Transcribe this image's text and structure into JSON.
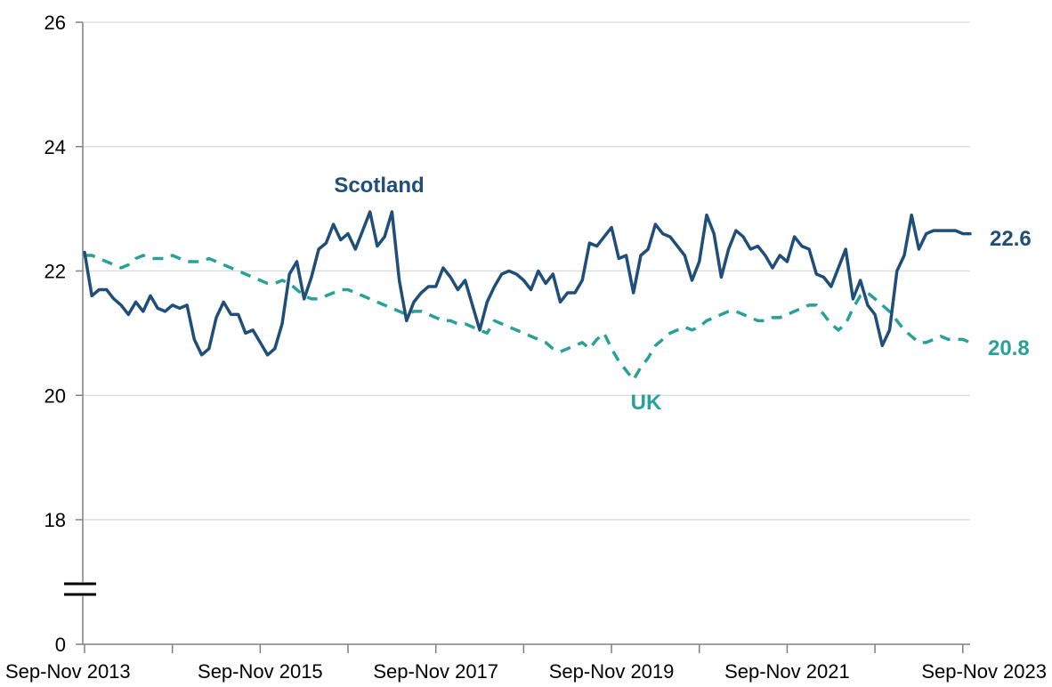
{
  "chart_data": {
    "type": "line",
    "title": "",
    "xlabel": "",
    "ylabel": "",
    "x_tick_labels": [
      "Sep-Nov 2013",
      "Sep-Nov 2015",
      "Sep-Nov 2017",
      "Sep-Nov 2019",
      "Sep-Nov 2021",
      "Sep-Nov 2023"
    ],
    "y_ticks": [
      0,
      18,
      20,
      22,
      24,
      26
    ],
    "y_tick_labels": [
      "0",
      "18",
      "20",
      "22",
      "24",
      "26"
    ],
    "ylim": [
      18,
      26
    ],
    "y_axis_break": true,
    "grid": "horizontal",
    "legend": "none (series labelled directly)",
    "series": [
      {
        "name": "Scotland",
        "color": "#1f4e79",
        "style": "solid",
        "end_label": "22.6",
        "values": [
          22.3,
          21.6,
          21.7,
          21.7,
          21.55,
          21.45,
          21.3,
          21.5,
          21.35,
          21.6,
          21.4,
          21.35,
          21.45,
          21.4,
          21.45,
          20.9,
          20.65,
          20.75,
          21.25,
          21.5,
          21.3,
          21.3,
          21.0,
          21.05,
          20.85,
          20.65,
          20.75,
          21.15,
          21.95,
          22.15,
          21.55,
          21.9,
          22.35,
          22.45,
          22.75,
          22.5,
          22.6,
          22.35,
          22.65,
          22.95,
          22.4,
          22.55,
          22.95,
          21.85,
          21.2,
          21.5,
          21.65,
          21.75,
          21.75,
          22.05,
          21.9,
          21.7,
          21.85,
          21.45,
          21.05,
          21.5,
          21.75,
          21.95,
          22.0,
          21.95,
          21.85,
          21.7,
          22.0,
          21.8,
          21.95,
          21.5,
          21.65,
          21.65,
          21.85,
          22.45,
          22.4,
          22.55,
          22.7,
          22.2,
          22.25,
          21.65,
          22.25,
          22.35,
          22.75,
          22.6,
          22.55,
          22.4,
          22.25,
          21.85,
          22.15,
          22.9,
          22.6,
          21.9,
          22.35,
          22.65,
          22.55,
          22.35,
          22.4,
          22.25,
          22.05,
          22.25,
          22.15,
          22.55,
          22.4,
          22.35,
          21.95,
          21.9,
          21.75,
          22.05,
          22.35,
          21.55,
          21.85,
          21.45,
          21.3,
          20.8,
          21.05,
          22.0,
          22.25,
          22.9,
          22.35,
          22.6,
          22.65,
          22.65,
          22.65,
          22.65,
          22.6,
          22.6
        ]
      },
      {
        "name": "UK",
        "color": "#2aa198",
        "style": "dashed",
        "end_label": "20.8",
        "values": [
          22.25,
          22.25,
          22.2,
          22.15,
          22.1,
          22.05,
          22.1,
          22.2,
          22.25,
          22.2,
          22.2,
          22.2,
          22.25,
          22.2,
          22.15,
          22.15,
          22.15,
          22.2,
          22.15,
          22.1,
          22.05,
          22.0,
          21.95,
          21.9,
          21.85,
          21.8,
          21.8,
          21.85,
          21.8,
          21.7,
          21.6,
          21.55,
          21.55,
          21.6,
          21.65,
          21.7,
          21.7,
          21.65,
          21.6,
          21.55,
          21.5,
          21.45,
          21.4,
          21.35,
          21.3,
          21.35,
          21.35,
          21.3,
          21.25,
          21.2,
          21.2,
          21.15,
          21.15,
          21.1,
          21.05,
          21.0,
          21.2,
          21.15,
          21.1,
          21.05,
          21.0,
          20.95,
          20.9,
          20.85,
          20.75,
          20.7,
          20.75,
          20.8,
          20.85,
          20.75,
          20.9,
          21.0,
          20.75,
          20.55,
          20.4,
          20.25,
          20.45,
          20.6,
          20.8,
          20.9,
          21.0,
          21.05,
          21.1,
          21.05,
          21.1,
          21.2,
          21.25,
          21.3,
          21.35,
          21.35,
          21.3,
          21.25,
          21.2,
          21.2,
          21.25,
          21.25,
          21.3,
          21.35,
          21.4,
          21.45,
          21.45,
          21.3,
          21.15,
          21.05,
          21.15,
          21.4,
          21.6,
          21.65,
          21.55,
          21.45,
          21.35,
          21.2,
          21.05,
          20.95,
          20.85,
          20.85,
          20.9,
          20.95,
          20.9,
          20.9,
          20.9,
          20.85
        ]
      }
    ]
  }
}
